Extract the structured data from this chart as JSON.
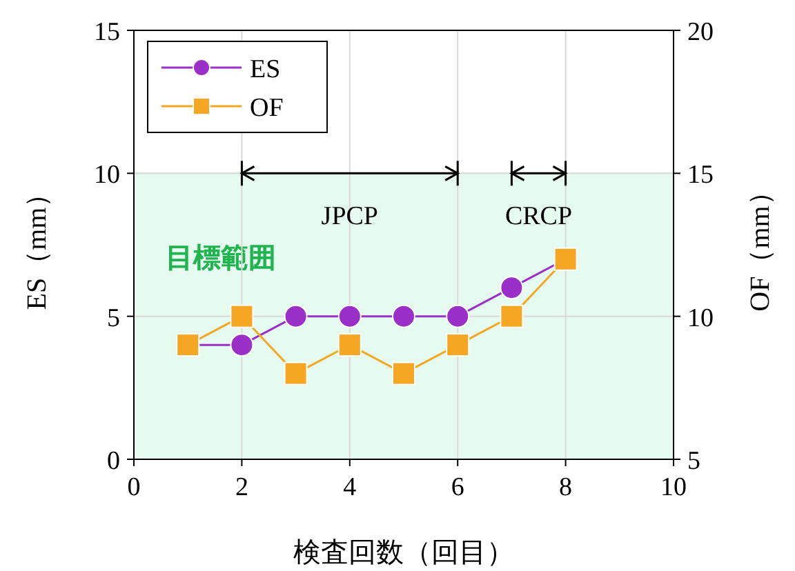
{
  "chart_data": {
    "type": "line",
    "xlabel": "検査回数（回目）",
    "ylabel": "ES（mm）",
    "y2label": "OF（mm）",
    "x": [
      1,
      2,
      3,
      4,
      5,
      6,
      7,
      8
    ],
    "xlim": [
      0,
      10
    ],
    "xticks": [
      0,
      2,
      4,
      6,
      8,
      10
    ],
    "ylim": [
      0,
      15
    ],
    "yticks": [
      0,
      5,
      10,
      15
    ],
    "y2lim": [
      5,
      20
    ],
    "y2ticks": [
      5,
      10,
      15,
      20
    ],
    "grid": true,
    "legend": "top left",
    "series": [
      {
        "name": "ES",
        "color": "#9b30c8",
        "marker": "circle",
        "values": [
          4,
          4,
          5,
          5,
          5,
          5,
          6,
          7
        ]
      },
      {
        "name": "OF",
        "color": "#f5a623",
        "marker": "square",
        "axis": "y2",
        "values": [
          9,
          10,
          8,
          9,
          8,
          9,
          10,
          12
        ]
      },
      {
        "color": "#000000",
        "marker": "none",
        "x": [
          2,
          6
        ],
        "values": [
          10,
          10
        ]
      },
      {
        "color": "#000000",
        "marker": "none",
        "x": [
          7,
          8
        ],
        "values": [
          10,
          10
        ]
      }
    ],
    "bands": [
      {
        "axis": "y",
        "from": 0,
        "to": 10,
        "label": "目標範囲",
        "color": "#e6fbef"
      }
    ],
    "annotations": [
      {
        "text": "JPCP",
        "x": 4,
        "y": 10
      },
      {
        "text": "CRCP",
        "x": 7.5,
        "y": 10
      }
    ]
  }
}
